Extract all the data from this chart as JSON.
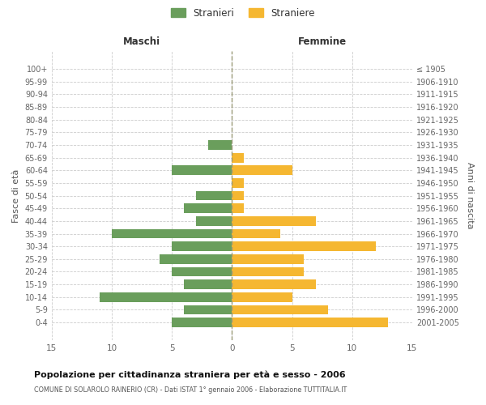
{
  "age_groups": [
    "100+",
    "95-99",
    "90-94",
    "85-89",
    "80-84",
    "75-79",
    "70-74",
    "65-69",
    "60-64",
    "55-59",
    "50-54",
    "45-49",
    "40-44",
    "35-39",
    "30-34",
    "25-29",
    "20-24",
    "15-19",
    "10-14",
    "5-9",
    "0-4"
  ],
  "birth_years": [
    "≤ 1905",
    "1906-1910",
    "1911-1915",
    "1916-1920",
    "1921-1925",
    "1926-1930",
    "1931-1935",
    "1936-1940",
    "1941-1945",
    "1946-1950",
    "1951-1955",
    "1956-1960",
    "1961-1965",
    "1966-1970",
    "1971-1975",
    "1976-1980",
    "1981-1985",
    "1986-1990",
    "1991-1995",
    "1996-2000",
    "2001-2005"
  ],
  "males": [
    0,
    0,
    0,
    0,
    0,
    0,
    2,
    0,
    5,
    0,
    3,
    4,
    3,
    10,
    5,
    6,
    5,
    4,
    11,
    4,
    5
  ],
  "females": [
    0,
    0,
    0,
    0,
    0,
    0,
    0,
    1,
    5,
    1,
    1,
    1,
    7,
    4,
    12,
    6,
    6,
    7,
    5,
    8,
    13
  ],
  "male_color": "#6a9e5c",
  "female_color": "#f5b731",
  "title": "Popolazione per cittadinanza straniera per età e sesso - 2006",
  "subtitle": "COMUNE DI SOLAROLO RAINERIO (CR) - Dati ISTAT 1° gennaio 2006 - Elaborazione TUTTITALIA.IT",
  "xlabel_left": "Maschi",
  "xlabel_right": "Femmine",
  "ylabel_left": "Fasce di età",
  "ylabel_right": "Anni di nascita",
  "legend_male": "Stranieri",
  "legend_female": "Straniere",
  "xlim": 15,
  "background_color": "#ffffff",
  "grid_color": "#cccccc",
  "bar_height": 0.75
}
